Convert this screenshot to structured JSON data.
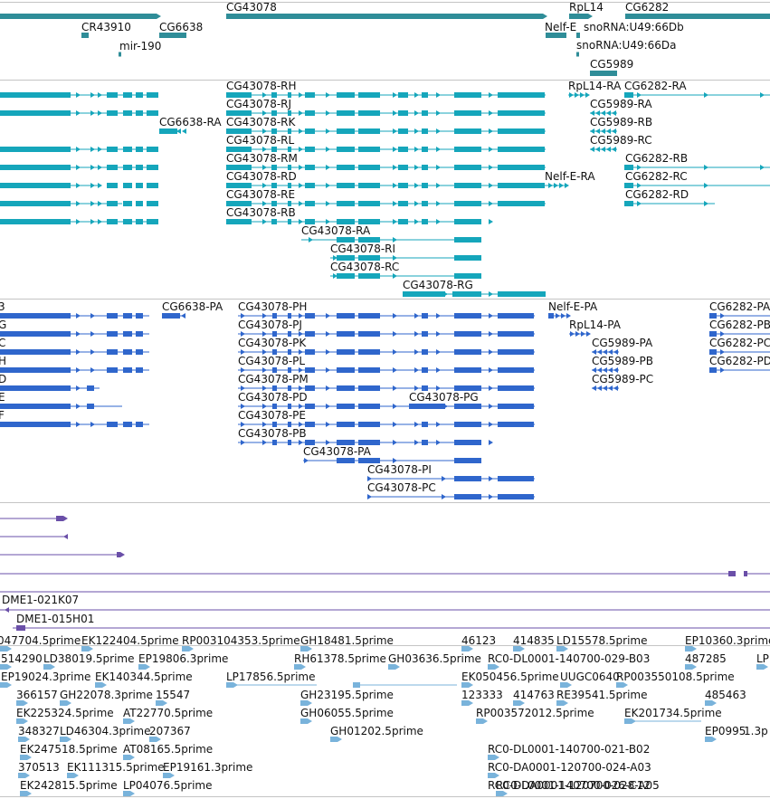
{
  "colors": {
    "gene": "#2f8d98",
    "transcript": "#15a6bb",
    "protein": "#2f66cc",
    "clone": "#6a4fa8",
    "est": "#79b3db",
    "separator": "#c4c4c4"
  },
  "gene_track": {
    "labels": [
      "CG43078",
      "RpL14",
      "CG6282",
      "CR43910",
      "CG6638",
      "Nelf-E",
      "snoRNA:U49:66Db",
      "mir-190",
      "snoRNA:U49:66Da",
      "CG5989"
    ]
  },
  "transcript_track": {
    "labels": [
      "CG43078-RH",
      "RpL14-RA",
      "CG6282-RA",
      "CG43078-RJ",
      "CG5989-RA",
      "CG6638-RA",
      "CG43078-RK",
      "CG5989-RB",
      "CG43078-RL",
      "CG5989-RC",
      "CG43078-RM",
      "CG6282-RB",
      "CG43078-RD",
      "Nelf-E-RA",
      "CG6282-RC",
      "CG43078-RE",
      "CG6282-RD",
      "CG43078-RB",
      "CG43078-RA",
      "CG43078-RI",
      "CG43078-RC",
      "CG43078-RG"
    ]
  },
  "protein_track": {
    "labels": [
      "CG6638-PA",
      "CG43078-PH",
      "Nelf-E-PA",
      "CG6282-PA",
      "CG43078-PJ",
      "RpL14-PA",
      "CG6282-PB",
      "CG43078-PK",
      "CG5989-PA",
      "CG6282-PC",
      "CG43078-PL",
      "CG5989-PB",
      "CG6282-PD",
      "CG43078-PM",
      "CG5989-PC",
      "CG43078-PD",
      "CG43078-PG",
      "CG43078-PE",
      "CG43078-PB",
      "CG43078-PA",
      "CG43078-PI",
      "CG43078-PC"
    ],
    "cut_labels": [
      "3",
      "G",
      "C",
      "H",
      "D",
      "E",
      "F"
    ]
  },
  "clone_track": {
    "labels": [
      "DME1-021K07",
      "DME1-015H01"
    ]
  },
  "est_track": {
    "labels": [
      "047704.5prime",
      "EK122404.5prime",
      "RP003104353.5prime",
      "GH18481.5prime",
      "46123",
      "414835",
      "LD15578.5prime",
      "EP10360.3prime",
      "514290",
      "LD38019.5prime",
      "EP19806.3prime",
      "RH61378.5prime",
      "GH03636.5prime",
      "RC0-DL0001-140700-029-B03",
      "487285",
      "LP",
      "EP19024.3prime",
      "EK140344.5prime",
      "LP17856.5prime",
      "EK050456.5prime",
      "UUGC0640",
      "RP003550108.5prime",
      "366157",
      "GH22078.3prime",
      "15547",
      "GH23195.5prime",
      "123333",
      "414763",
      "RE39541.5prime",
      "485463",
      "EK225324.5prime",
      "AT22770.5prime",
      "GH06055.5prime",
      "RP003572012.5prime",
      "EK201734.5prime",
      "348327",
      "LD46304.3prime",
      "207367",
      "GH01202.5prime",
      "EP0995",
      "1.3p",
      "EK247518.5prime",
      "AT08165.5prime",
      "RC0-DL0001-140700-021-B02",
      "370513",
      "EK111315.5prime",
      "EP19161.3prime",
      "RC0-DA0001-120700-024-A03",
      "EK242815.5prime",
      "LP04076.5prime",
      "RC0-DL0001-140700-026-C12",
      "RC0-DA0001-120700-028-A05"
    ]
  }
}
